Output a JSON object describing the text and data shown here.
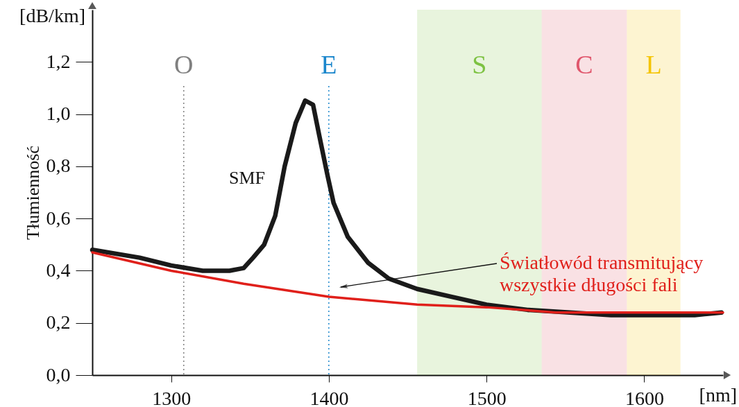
{
  "chart_data": {
    "type": "line",
    "ylabel": "Tłumienność",
    "annotations": [
      "[dB/km]",
      "[nm]"
    ],
    "xlim": [
      1250,
      1650
    ],
    "xticks": [
      1300,
      1400,
      1500,
      1600
    ],
    "ylim": [
      0,
      1.4
    ],
    "yticks": [
      {
        "value": 0,
        "label": "0,0"
      },
      {
        "value": 0.2,
        "label": "0,2"
      },
      {
        "value": 0.4,
        "label": "0,4"
      },
      {
        "value": 0.6,
        "label": "0,6"
      },
      {
        "value": 0.8,
        "label": "0,8"
      },
      {
        "value": 1.0,
        "label": "1,0"
      },
      {
        "value": 1.2,
        "label": "1,2"
      }
    ],
    "grid": false,
    "legend": false,
    "line_style": "solid",
    "marker": "none",
    "series": [
      {
        "name": "SMF",
        "color": "#1a1a1a",
        "x": [
          1250,
          1280,
          1300,
          1320,
          1337,
          1346,
          1352,
          1359,
          1366,
          1372,
          1379,
          1385,
          1390,
          1394,
          1399,
          1403,
          1412,
          1425,
          1438,
          1456,
          1478,
          1500,
          1526,
          1553,
          1579,
          1601,
          1632,
          1649
        ],
        "values": [
          0.48,
          0.45,
          0.42,
          0.4,
          0.4,
          0.41,
          0.45,
          0.5,
          0.61,
          0.8,
          0.966,
          1.052,
          1.036,
          0.916,
          0.77,
          0.66,
          0.53,
          0.43,
          0.37,
          0.33,
          0.3,
          0.27,
          0.25,
          0.24,
          0.23,
          0.23,
          0.23,
          0.24
        ]
      },
      {
        "name": "Światłowód transmitujący wszystkie długości fali",
        "color": "#e0201b",
        "x": [
          1250,
          1300,
          1346,
          1400,
          1456,
          1500,
          1544,
          1588,
          1650
        ],
        "values": [
          0.47,
          0.4,
          0.35,
          0.3,
          0.27,
          0.26,
          0.24,
          0.24,
          0.24
        ]
      }
    ],
    "ref_lines": [
      {
        "axis": "x",
        "value": 1308,
        "label": "O",
        "color": "#808080",
        "line_style": "dotted"
      },
      {
        "axis": "x",
        "value": 1400,
        "label": "E",
        "color": "#1a86cc",
        "line_style": "dotted"
      }
    ],
    "bands": [
      {
        "axis": "x",
        "from": 1456,
        "to": 1535,
        "label": "S",
        "color": "#7dc242"
      },
      {
        "axis": "x",
        "from": 1535,
        "to": 1589,
        "label": "C",
        "color": "#e0566c"
      },
      {
        "axis": "x",
        "from": 1589,
        "to": 1623,
        "label": "L",
        "color": "#f5c400"
      }
    ]
  }
}
